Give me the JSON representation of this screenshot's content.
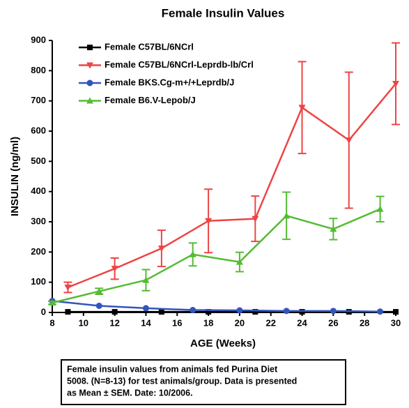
{
  "chart_data": {
    "type": "line",
    "title": "Female Insulin Values",
    "xlabel": "AGE (Weeks)",
    "ylabel": "INSULIN (ng/ml)",
    "xlim": [
      8,
      30
    ],
    "xticks": [
      8,
      10,
      12,
      14,
      16,
      18,
      20,
      22,
      24,
      26,
      28,
      30
    ],
    "ylim": [
      0,
      900
    ],
    "yticks": [
      0,
      100,
      200,
      300,
      400,
      500,
      600,
      700,
      800,
      900
    ],
    "legend": "upper left",
    "series": [
      {
        "name": "Female C57BL/6NCrl",
        "color": "#000000",
        "marker": "square",
        "x": [
          9,
          12,
          15,
          18,
          21,
          24,
          27,
          30
        ],
        "values": [
          2,
          2,
          2,
          2,
          2,
          2,
          2,
          2
        ]
      },
      {
        "name": "Female C57BL/6NCrl-Leprdb-lb/Crl",
        "color": "#ee4444",
        "marker": "triangle-down",
        "x": [
          9,
          12,
          15,
          18,
          21,
          24,
          27,
          30
        ],
        "values": [
          83,
          145,
          212,
          303,
          310,
          678,
          570,
          757
        ],
        "errors": [
          17,
          35,
          60,
          105,
          75,
          152,
          225,
          135
        ]
      },
      {
        "name": "Female BKS.Cg-m+/+Leprdb/J",
        "color": "#3355bb",
        "marker": "circle",
        "x": [
          8,
          11,
          14,
          17,
          20,
          23,
          26,
          29
        ],
        "values": [
          38,
          22,
          14,
          8,
          7,
          5,
          5,
          3
        ]
      },
      {
        "name": "Female B6.V-Lepob/J",
        "color": "#55bb33",
        "marker": "triangle-up",
        "x": [
          8,
          11,
          14,
          17,
          20,
          23,
          26,
          29
        ],
        "values": [
          32,
          70,
          107,
          192,
          167,
          320,
          276,
          342
        ],
        "errors": [
          5,
          10,
          35,
          38,
          32,
          78,
          35,
          42
        ]
      }
    ],
    "caption": [
      "Female insulin values from animals fed Purina Diet",
      "5008. (N=8-13) for test animals/group.  Data is presented",
      "as Mean ± SEM. Date: 10/2006."
    ]
  }
}
